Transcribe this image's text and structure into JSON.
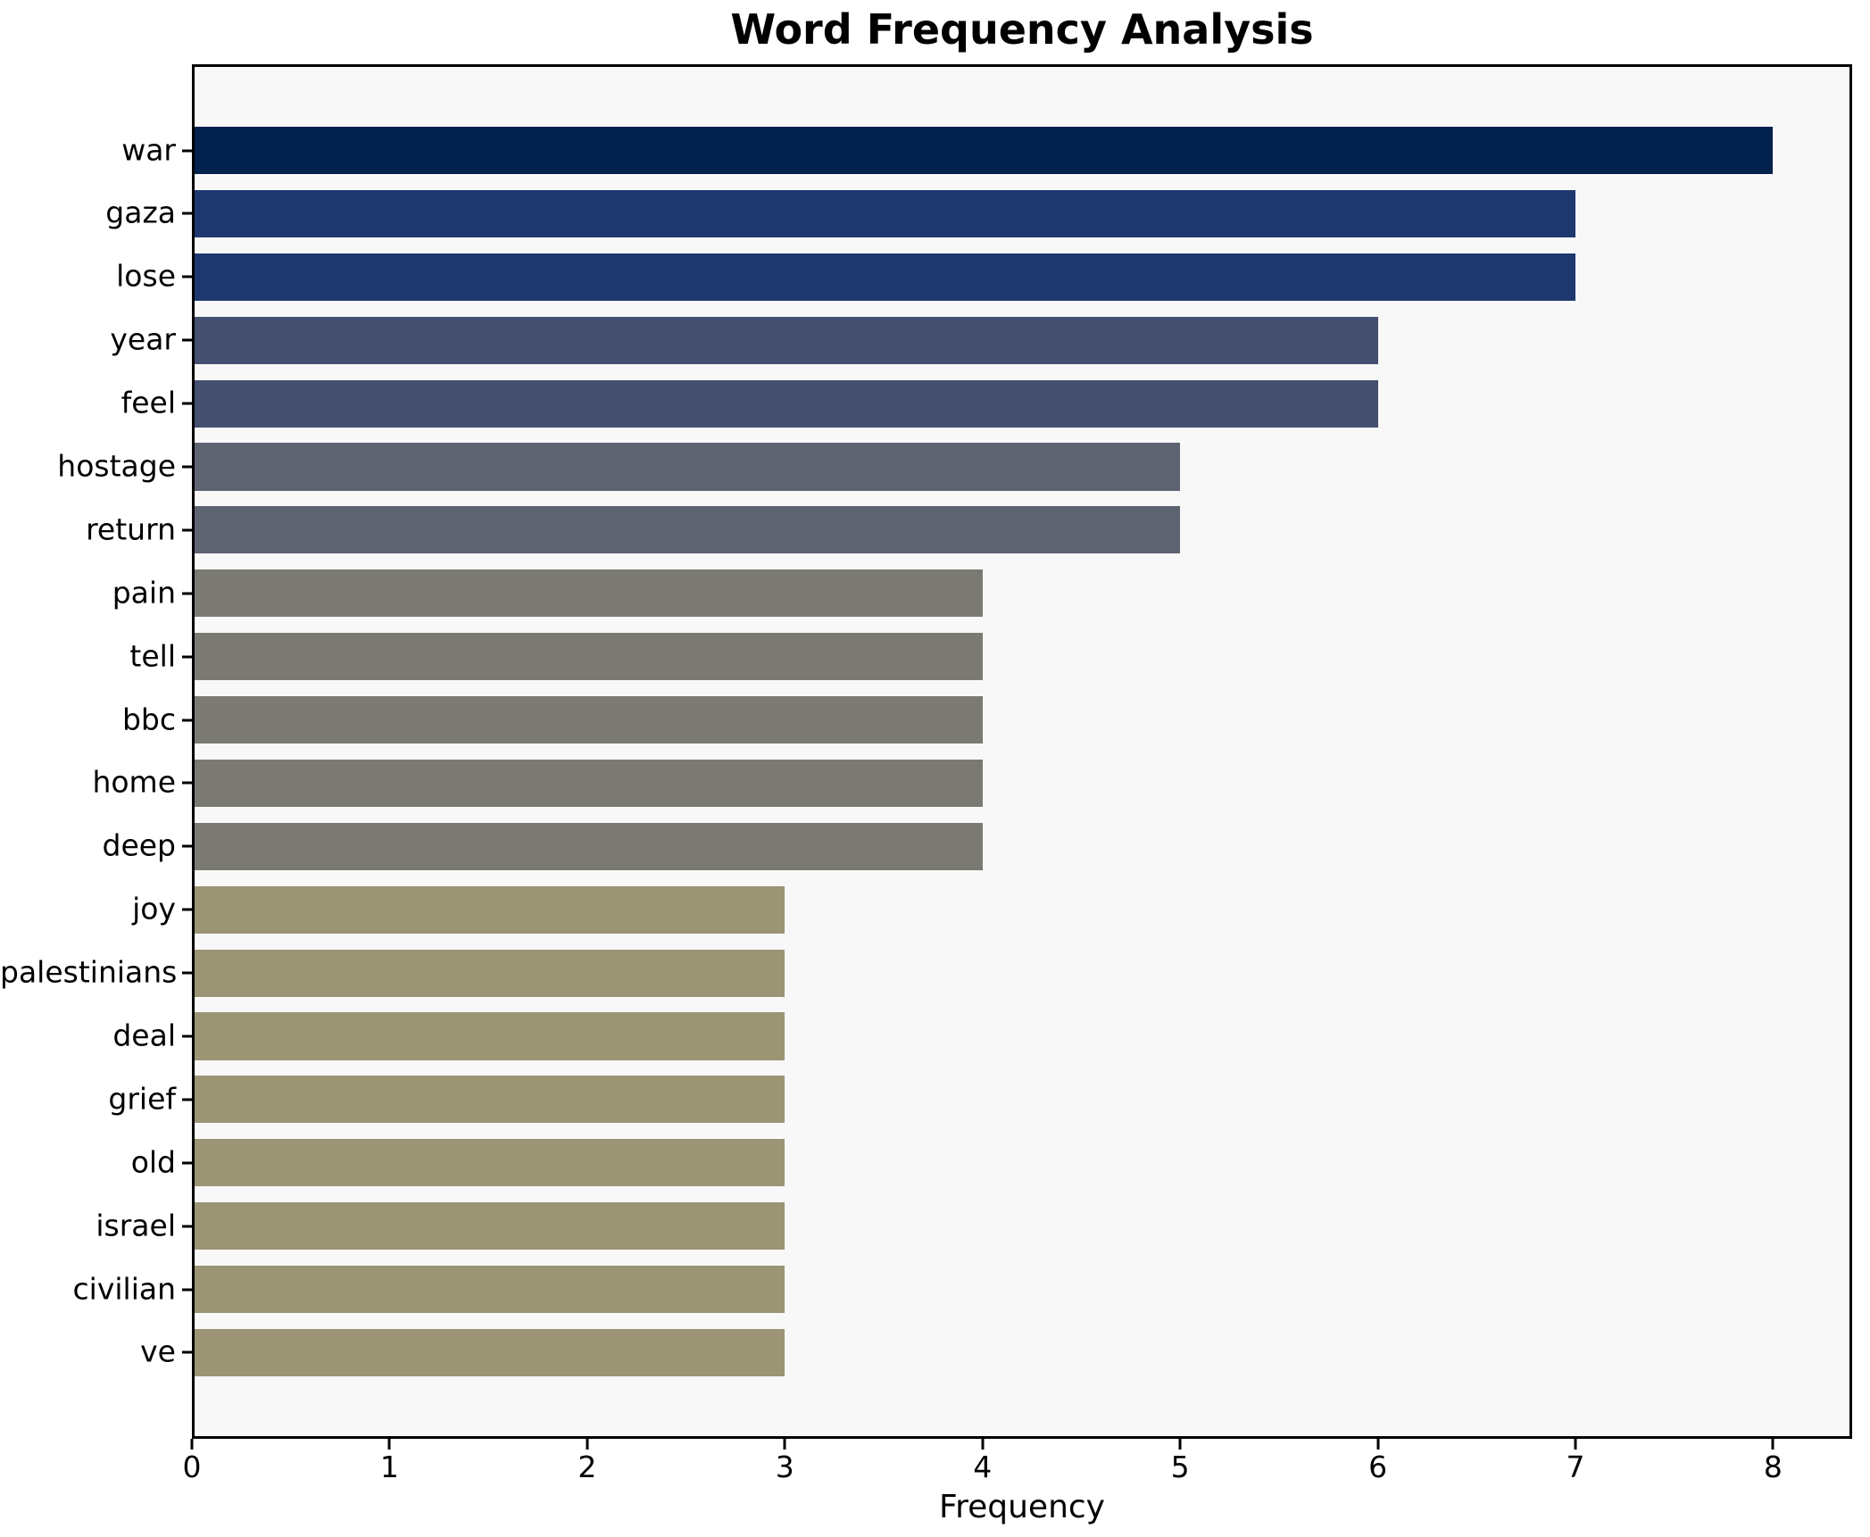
{
  "chart_data": {
    "type": "bar",
    "orientation": "horizontal",
    "title": "Word Frequency Analysis",
    "xlabel": "Frequency",
    "ylabel": "",
    "categories": [
      "war",
      "gaza",
      "lose",
      "year",
      "feel",
      "hostage",
      "return",
      "pain",
      "tell",
      "bbc",
      "home",
      "deep",
      "joy",
      "palestinians",
      "deal",
      "grief",
      "old",
      "israel",
      "civilian",
      "ve"
    ],
    "values": [
      8,
      7,
      7,
      6,
      6,
      5,
      5,
      4,
      4,
      4,
      4,
      4,
      3,
      3,
      3,
      3,
      3,
      3,
      3,
      3
    ],
    "bar_colors": [
      "#02214d",
      "#1d386e",
      "#1d386e",
      "#454f70",
      "#454f70",
      "#5d6370",
      "#5d6370",
      "#7b7a72",
      "#7b7a72",
      "#7b7a72",
      "#7b7a72",
      "#7b7a72",
      "#9b9475",
      "#9b9475",
      "#9b9475",
      "#9b9475",
      "#9b9475",
      "#9b9475",
      "#9b9475",
      "#9b9475"
    ],
    "xlim": [
      0,
      8.4
    ],
    "xticks": [
      0,
      1,
      2,
      3,
      4,
      5,
      6,
      7,
      8
    ],
    "grid": false,
    "legend_position": "none",
    "plot_background": "#f8f8f8",
    "figure_background": "#ffffff",
    "axis_color": "#000000",
    "bar_height_fraction": 0.75
  }
}
